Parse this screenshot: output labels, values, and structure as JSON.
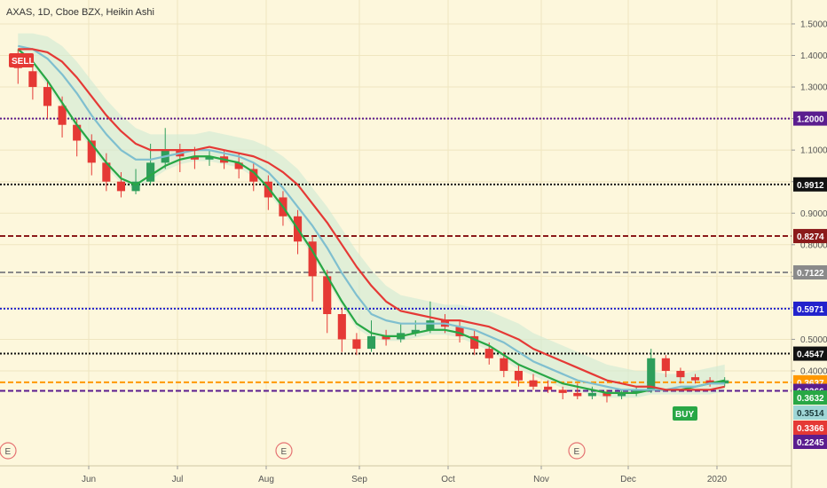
{
  "chart_data": {
    "type": "candlestick",
    "title": "AXAS, 1D, Cboe BZX, Heikin Ashi",
    "y_axis": {
      "position": "right",
      "tick_labels": [
        "1.5000",
        "1.4000",
        "1.3000",
        "1.2000",
        "1.1000",
        "1.0000",
        "0.9000",
        "0.8000",
        "0.7000",
        "0.6000",
        "0.5000",
        "0.4000"
      ],
      "tick_values": [
        1.5,
        1.4,
        1.3,
        1.2,
        1.1,
        1.0,
        0.9,
        0.8,
        0.7,
        0.6,
        0.5,
        0.4
      ],
      "ylim": [
        0.21,
        1.55
      ]
    },
    "x_axis": {
      "tick_labels": [
        "Jun",
        "Jul",
        "Aug",
        "Sep",
        "Oct",
        "Nov",
        "Dec",
        "2020"
      ]
    },
    "horizontal_levels": [
      {
        "value": 1.2,
        "label": "1.2000",
        "color": "#5b1d8f",
        "style": "dotted"
      },
      {
        "value": 0.9912,
        "label": "0.9912",
        "color": "#111111",
        "style": "dotted"
      },
      {
        "value": 0.8274,
        "label": "0.8274",
        "color": "#8b1a1a",
        "style": "dashed"
      },
      {
        "value": 0.7122,
        "label": "0.7122",
        "color": "#8a8a8a",
        "style": "dashed"
      },
      {
        "value": 0.5971,
        "label": "0.5971",
        "color": "#2222cc",
        "style": "dotted"
      },
      {
        "value": 0.4547,
        "label": "0.4547",
        "color": "#111111",
        "style": "dotted"
      },
      {
        "value": 0.3637,
        "label": "0.3637",
        "color": "#ff9800",
        "style": "dashed"
      },
      {
        "value": 0.3366,
        "label": "0.3366",
        "color": "#5b1d8f",
        "style": "dashed"
      }
    ],
    "price_labels": [
      {
        "label": "0.3632",
        "value": 0.3632,
        "color": "#28a745"
      },
      {
        "label": "0.3514",
        "value": 0.3514,
        "color": "#9fd6d6"
      },
      {
        "label": "0.3366",
        "value": 0.3366,
        "color": "#e53935"
      },
      {
        "label": "0.2245",
        "value": 0.2245,
        "color": "#5b1d8f"
      }
    ],
    "signals": [
      {
        "label": "SELL",
        "color": "#e53935"
      },
      {
        "label": "BUY",
        "color": "#28a745"
      }
    ],
    "event_marker_label": "E",
    "event_count": 3,
    "series": [
      {
        "color": "#28a745",
        "values": [
          1.42,
          1.38,
          1.32,
          1.25,
          1.18,
          1.12,
          1.06,
          1.01,
          0.99,
          1.02,
          1.05,
          1.07,
          1.08,
          1.08,
          1.07,
          1.06,
          1.03,
          0.98,
          0.92,
          0.85,
          0.78,
          0.7,
          0.62,
          0.55,
          0.52,
          0.51,
          0.51,
          0.52,
          0.53,
          0.53,
          0.52,
          0.5,
          0.48,
          0.45,
          0.42,
          0.4,
          0.38,
          0.36,
          0.35,
          0.34,
          0.33,
          0.33,
          0.33,
          0.34,
          0.34,
          0.34,
          0.35,
          0.36,
          0.37
        ]
      },
      {
        "color": "#7fbfcf",
        "values": [
          1.43,
          1.42,
          1.39,
          1.34,
          1.28,
          1.21,
          1.15,
          1.1,
          1.07,
          1.07,
          1.08,
          1.09,
          1.1,
          1.1,
          1.09,
          1.08,
          1.06,
          1.03,
          0.98,
          0.92,
          0.86,
          0.79,
          0.71,
          0.64,
          0.58,
          0.56,
          0.55,
          0.55,
          0.55,
          0.55,
          0.54,
          0.53,
          0.51,
          0.49,
          0.46,
          0.43,
          0.41,
          0.39,
          0.37,
          0.36,
          0.35,
          0.34,
          0.34,
          0.34,
          0.34,
          0.35,
          0.35,
          0.36,
          0.36
        ]
      },
      {
        "color": "#e53935",
        "values": [
          1.42,
          1.42,
          1.41,
          1.38,
          1.33,
          1.27,
          1.21,
          1.16,
          1.12,
          1.1,
          1.1,
          1.1,
          1.1,
          1.11,
          1.1,
          1.09,
          1.08,
          1.06,
          1.03,
          0.99,
          0.93,
          0.87,
          0.8,
          0.73,
          0.67,
          0.62,
          0.59,
          0.58,
          0.57,
          0.56,
          0.56,
          0.55,
          0.54,
          0.52,
          0.5,
          0.47,
          0.45,
          0.43,
          0.41,
          0.39,
          0.37,
          0.36,
          0.35,
          0.35,
          0.34,
          0.34,
          0.34,
          0.34,
          0.35
        ]
      }
    ],
    "candles": [
      [
        1.38,
        1.36,
        1.42,
        1.31
      ],
      [
        1.35,
        1.3,
        1.38,
        1.26
      ],
      [
        1.3,
        1.24,
        1.32,
        1.2
      ],
      [
        1.24,
        1.18,
        1.27,
        1.14
      ],
      [
        1.18,
        1.13,
        1.2,
        1.08
      ],
      [
        1.13,
        1.06,
        1.15,
        1.02
      ],
      [
        1.06,
        1.0,
        1.09,
        0.97
      ],
      [
        1.0,
        0.97,
        1.03,
        0.95
      ],
      [
        0.97,
        1.0,
        1.04,
        0.96
      ],
      [
        1.0,
        1.06,
        1.12,
        0.99
      ],
      [
        1.06,
        1.1,
        1.17,
        1.04
      ],
      [
        1.1,
        1.08,
        1.12,
        1.03
      ],
      [
        1.08,
        1.07,
        1.11,
        1.04
      ],
      [
        1.07,
        1.08,
        1.1,
        1.05
      ],
      [
        1.08,
        1.06,
        1.1,
        1.04
      ],
      [
        1.06,
        1.04,
        1.09,
        1.01
      ],
      [
        1.04,
        1.0,
        1.06,
        0.97
      ],
      [
        1.0,
        0.95,
        1.02,
        0.91
      ],
      [
        0.95,
        0.89,
        0.97,
        0.86
      ],
      [
        0.89,
        0.81,
        0.91,
        0.77
      ],
      [
        0.81,
        0.7,
        0.83,
        0.62
      ],
      [
        0.7,
        0.58,
        0.72,
        0.52
      ],
      [
        0.58,
        0.5,
        0.6,
        0.46
      ],
      [
        0.5,
        0.47,
        0.52,
        0.45
      ],
      [
        0.47,
        0.51,
        0.56,
        0.46
      ],
      [
        0.51,
        0.5,
        0.53,
        0.48
      ],
      [
        0.5,
        0.52,
        0.55,
        0.49
      ],
      [
        0.52,
        0.53,
        0.56,
        0.51
      ],
      [
        0.53,
        0.56,
        0.62,
        0.52
      ],
      [
        0.56,
        0.54,
        0.58,
        0.52
      ],
      [
        0.54,
        0.51,
        0.56,
        0.49
      ],
      [
        0.51,
        0.47,
        0.53,
        0.45
      ],
      [
        0.47,
        0.44,
        0.49,
        0.42
      ],
      [
        0.44,
        0.4,
        0.46,
        0.38
      ],
      [
        0.4,
        0.37,
        0.42,
        0.35
      ],
      [
        0.37,
        0.35,
        0.39,
        0.34
      ],
      [
        0.35,
        0.34,
        0.37,
        0.33
      ],
      [
        0.34,
        0.33,
        0.35,
        0.31
      ],
      [
        0.33,
        0.32,
        0.36,
        0.31
      ],
      [
        0.32,
        0.33,
        0.35,
        0.31
      ],
      [
        0.33,
        0.32,
        0.34,
        0.3
      ],
      [
        0.32,
        0.33,
        0.34,
        0.31
      ],
      [
        0.33,
        0.34,
        0.35,
        0.32
      ],
      [
        0.34,
        0.44,
        0.47,
        0.33
      ],
      [
        0.44,
        0.4,
        0.45,
        0.38
      ],
      [
        0.4,
        0.38,
        0.41,
        0.36
      ],
      [
        0.38,
        0.37,
        0.39,
        0.36
      ],
      [
        0.37,
        0.36,
        0.38,
        0.35
      ],
      [
        0.36,
        0.37,
        0.38,
        0.35
      ]
    ]
  }
}
